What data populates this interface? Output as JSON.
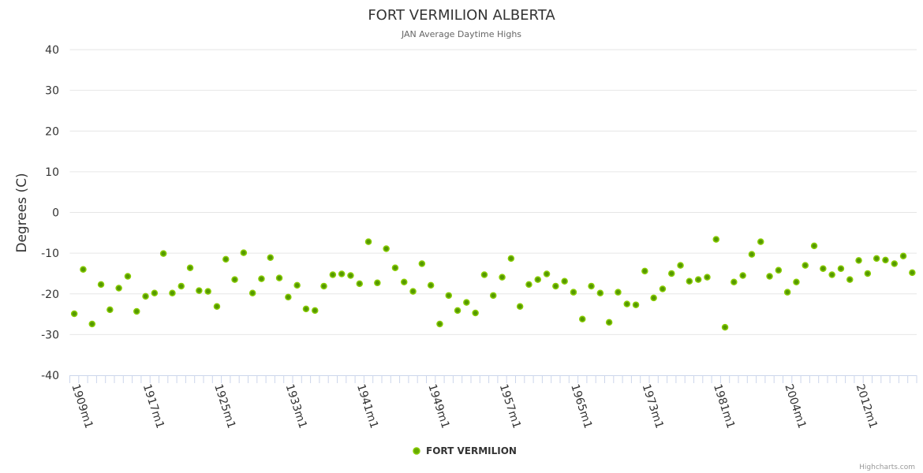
{
  "chart_data": {
    "type": "scatter",
    "title": "FORT VERMILION ALBERTA",
    "subtitle": "JAN Average Daytime Highs",
    "ylabel": "Degrees (C)",
    "xlabel": "",
    "ylim": [
      -40,
      40
    ],
    "yticks": [
      40,
      30,
      20,
      10,
      0,
      -10,
      -20,
      -30,
      -40
    ],
    "grid": true,
    "legend_position": "bottom-center",
    "series": [
      {
        "name": "FORT VERMILION",
        "color": "#66aa00",
        "values": [
          -24.9,
          -14.0,
          -27.4,
          -17.7,
          -23.9,
          -18.6,
          -15.7,
          -24.3,
          -20.6,
          -19.8,
          -10.1,
          -19.8,
          -18.1,
          -13.6,
          -19.2,
          -19.4,
          -23.1,
          -11.5,
          -16.5,
          -9.9,
          -19.8,
          -16.3,
          -11.1,
          -16.1,
          -20.8,
          -17.9,
          -23.7,
          -24.1,
          -18.1,
          -15.3,
          -15.1,
          -15.5,
          -17.5,
          -7.2,
          -17.3,
          -8.9,
          -13.6,
          -17.1,
          -19.4,
          -12.6,
          -17.9,
          -27.4,
          -20.4,
          -24.1,
          -22.1,
          -24.7,
          -15.3,
          -20.4,
          -15.9,
          -11.3,
          -23.1,
          -17.7,
          -16.5,
          -15.1,
          -18.1,
          -16.9,
          -19.6,
          -26.2,
          -18.1,
          -19.8,
          -27.0,
          -19.6,
          -22.5,
          -22.7,
          -14.4,
          -21.0,
          -18.8,
          -15.0,
          -13.0,
          -16.9,
          -16.5,
          -15.9,
          -6.6,
          -28.2,
          -17.1,
          -15.5,
          -10.3,
          -7.2,
          -15.7,
          -14.2,
          -19.6,
          -17.1,
          -13.0,
          -8.2,
          -13.8,
          -15.3,
          -13.8,
          -16.5,
          -11.8,
          -15.0,
          -11.3,
          -11.7,
          -12.6,
          -10.7,
          -14.8
        ]
      }
    ],
    "x_tick_labels": [
      "1909m1",
      "1917m1",
      "1925m1",
      "1933m1",
      "1941m1",
      "1949m1",
      "1957m1",
      "1965m1",
      "1973m1",
      "1981m1",
      "2004m1",
      "2012m1"
    ],
    "label_step": 8
  },
  "credits": "Highcharts.com"
}
